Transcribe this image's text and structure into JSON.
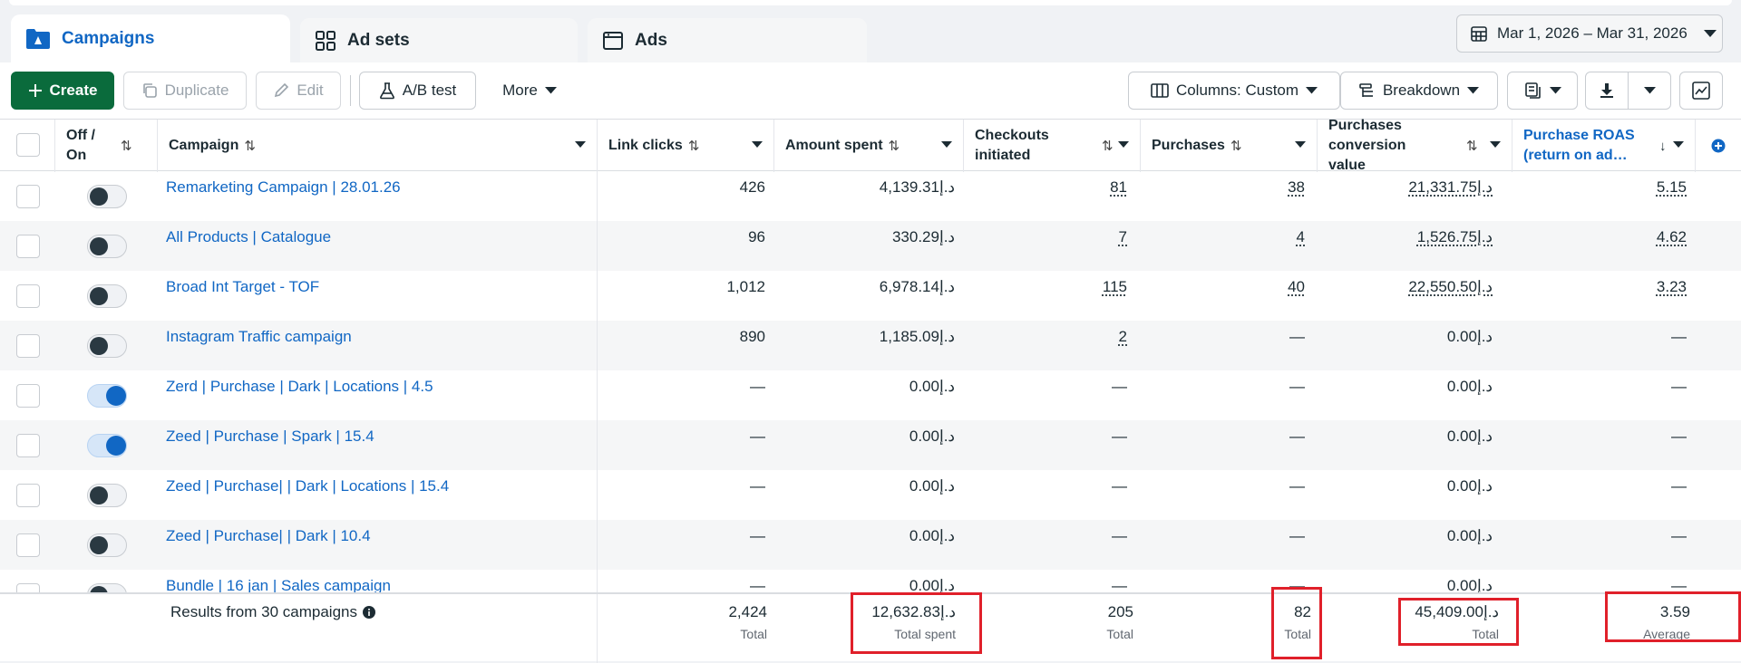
{
  "tabs": [
    {
      "label": "Campaigns",
      "icon": "campaign-folder-icon",
      "active": true
    },
    {
      "label": "Ad sets",
      "icon": "grid-icon",
      "active": false
    },
    {
      "label": "Ads",
      "icon": "ad-window-icon",
      "active": false
    }
  ],
  "date_range": "Mar 1, 2026 – Mar 31, 2026",
  "toolbar": {
    "create": "Create",
    "duplicate": "Duplicate",
    "edit": "Edit",
    "ab_test": "A/B test",
    "more": "More",
    "columns": "Columns: Custom",
    "breakdown": "Breakdown"
  },
  "columns": {
    "off_on": "Off / On",
    "campaign": "Campaign",
    "link_clicks": "Link clicks",
    "amount_spent": "Amount spent",
    "checkouts": "Checkouts initiated",
    "purchases": "Purchases",
    "conversion_value": "Purchases conversion value",
    "roas": "Purchase ROAS (return on ad…"
  },
  "rows": [
    {
      "name": "Remarketing Campaign | 28.01.26",
      "on": false,
      "clicks": "426",
      "spent": "د.إ4,139.31",
      "checkouts": "81",
      "purchases": "38",
      "value": "د.إ21,331.75",
      "roas": "5.15"
    },
    {
      "name": "All Products | Catalogue",
      "on": false,
      "clicks": "96",
      "spent": "د.إ330.29",
      "checkouts": "7",
      "purchases": "4",
      "value": "د.إ1,526.75",
      "roas": "4.62"
    },
    {
      "name": "Broad Int Target - TOF",
      "on": false,
      "clicks": "1,012",
      "spent": "د.إ6,978.14",
      "checkouts": "115",
      "purchases": "40",
      "value": "د.إ22,550.50",
      "roas": "3.23"
    },
    {
      "name": "Instagram Traffic campaign",
      "on": false,
      "clicks": "890",
      "spent": "د.إ1,185.09",
      "checkouts": "2",
      "purchases": "—",
      "value": "د.إ0.00",
      "roas": "—"
    },
    {
      "name": "Zerd | Purchase | Dark | Locations | 4.5",
      "on": true,
      "clicks": "—",
      "spent": "د.إ0.00",
      "checkouts": "—",
      "purchases": "—",
      "value": "د.إ0.00",
      "roas": "—"
    },
    {
      "name": "Zeed | Purchase | Spark | 15.4",
      "on": true,
      "clicks": "—",
      "spent": "د.إ0.00",
      "checkouts": "—",
      "purchases": "—",
      "value": "د.إ0.00",
      "roas": "—"
    },
    {
      "name": "Zeed | Purchase| | Dark | Locations | 15.4",
      "on": false,
      "clicks": "—",
      "spent": "د.إ0.00",
      "checkouts": "—",
      "purchases": "—",
      "value": "د.إ0.00",
      "roas": "—"
    },
    {
      "name": "Zeed | Purchase| | Dark | 10.4",
      "on": false,
      "clicks": "—",
      "spent": "د.إ0.00",
      "checkouts": "—",
      "purchases": "—",
      "value": "د.إ0.00",
      "roas": "—"
    },
    {
      "name": "Bundle | 16 jan | Sales campaign",
      "on": false,
      "clicks": "—",
      "spent": "د.إ0.00",
      "checkouts": "—",
      "purchases": "—",
      "value": "د.إ0.00",
      "roas": "—"
    }
  ],
  "footer": {
    "results_label": "Results from 30 campaigns",
    "clicks": "2,424",
    "clicks_sub": "Total",
    "spent": "د.إ12,632.83",
    "spent_sub": "Total spent",
    "checkouts": "205",
    "checkouts_sub": "Total",
    "purchases": "82",
    "purchases_sub": "Total",
    "value": "د.إ45,409.00",
    "value_sub": "Total",
    "roas": "3.59",
    "roas_sub": "Average"
  },
  "colors": {
    "accent": "#1167c4",
    "create": "#0a6b3c",
    "highlight": "#e0202a"
  }
}
